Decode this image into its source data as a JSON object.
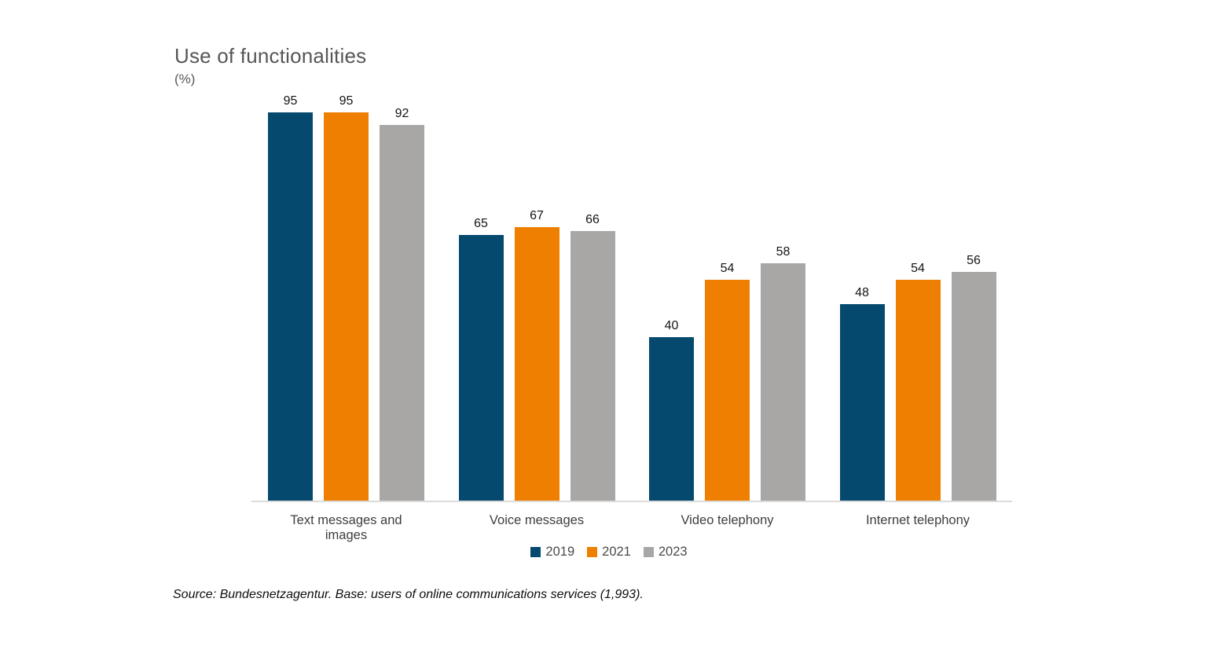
{
  "title": "Use of functionalities",
  "subtitle": "(%)",
  "source": "Source: Bundesnetzagentur. Base: users of online communications services (1,993).",
  "colors": {
    "series_2019": "#05496F",
    "series_2021": "#EE7F00",
    "series_2023": "#A8A7A5",
    "axis_line": "#DBDBDA",
    "title_text": "#575756",
    "category_text": "#3E3E3D",
    "value_text": "#141414"
  },
  "chart_data": {
    "type": "bar",
    "title": "Use of functionalities",
    "ylabel": "(%)",
    "categories": [
      "Text messages and images",
      "Voice messages",
      "Video telephony",
      "Internet telephony"
    ],
    "series": [
      {
        "name": "2019",
        "color": "#05496F",
        "values": [
          95,
          65,
          40,
          48
        ]
      },
      {
        "name": "2021",
        "color": "#EE7F00",
        "values": [
          95,
          67,
          54,
          54
        ]
      },
      {
        "name": "2023",
        "color": "#A8A7A5",
        "values": [
          92,
          66,
          58,
          56
        ]
      }
    ],
    "ylim": [
      0,
      100
    ],
    "grid": false,
    "y_axis_visible": false,
    "data_labels": true,
    "legend_position": "bottom"
  }
}
